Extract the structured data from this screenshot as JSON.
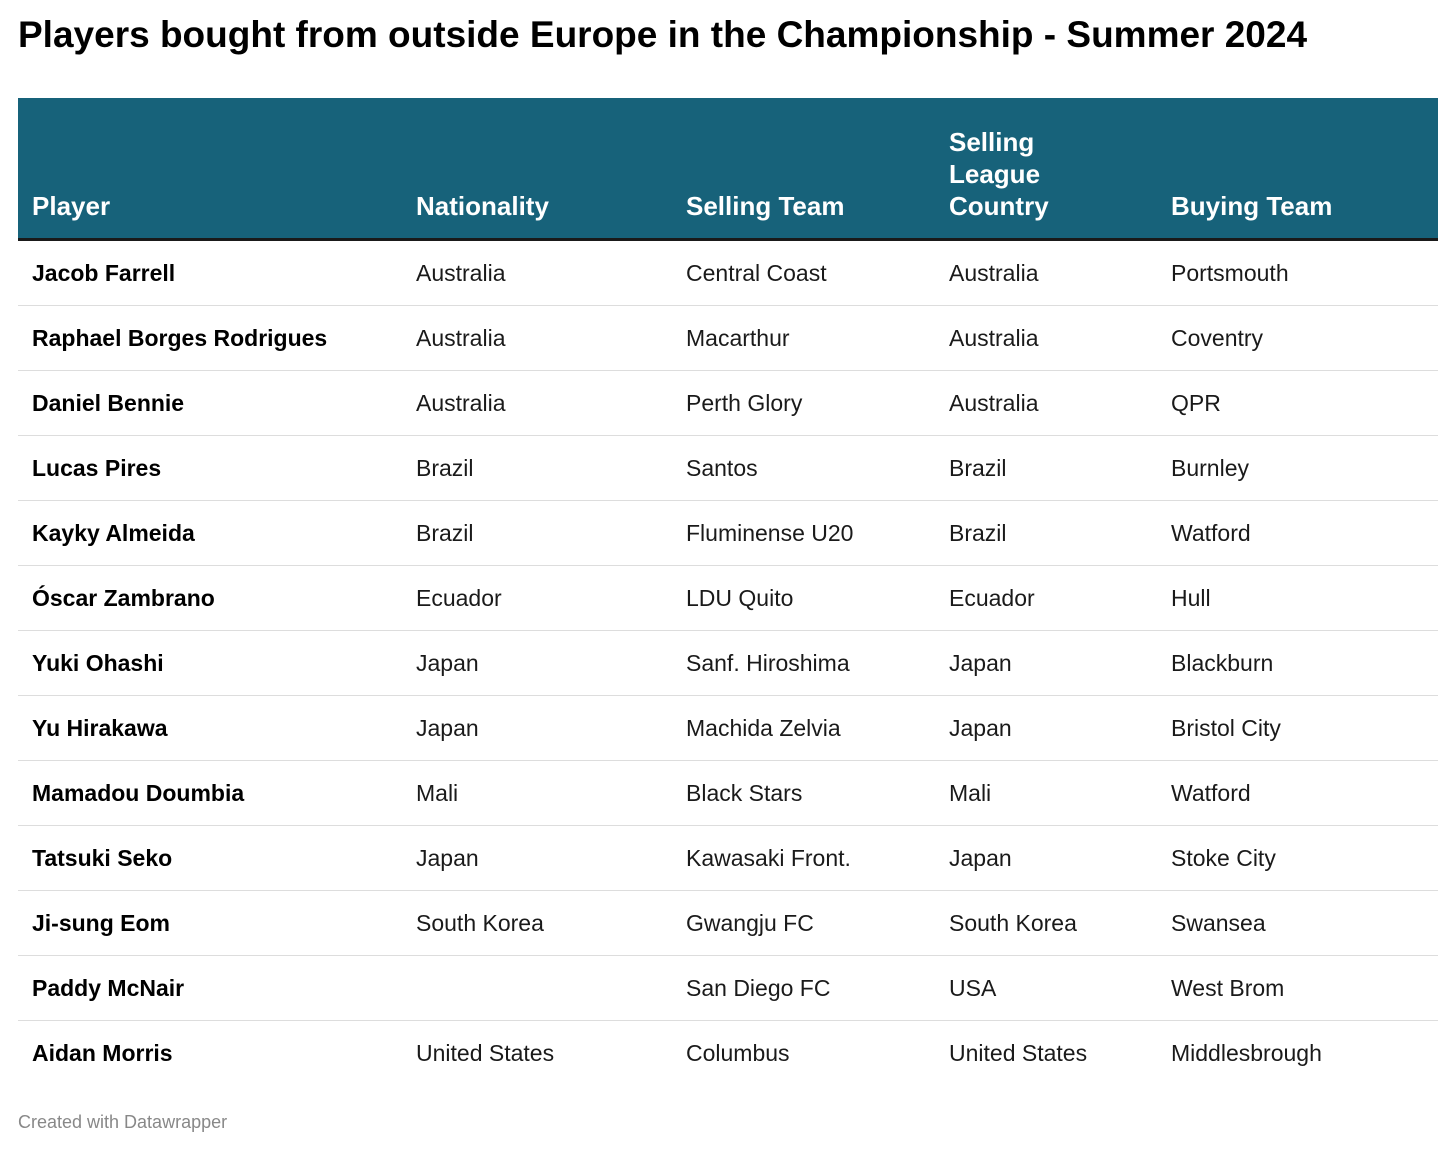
{
  "title": "Players bought from outside Europe in the Championship - Summer 2024",
  "footer": "Created with Datawrapper",
  "colors": {
    "header_bg": "#17627a",
    "header_text": "#ffffff",
    "row_divider": "#dddddd"
  },
  "chart_data": {
    "type": "table",
    "title": "Players bought from outside Europe in the Championship - Summer 2024",
    "columns": [
      "Player",
      "Nationality",
      "Selling Team",
      "Selling\nLeague\nCountry",
      "Buying Team"
    ],
    "rows": [
      [
        "Jacob Farrell",
        "Australia",
        "Central Coast",
        "Australia",
        "Portsmouth"
      ],
      [
        "Raphael Borges Rodrigues",
        "Australia",
        "Macarthur",
        "Australia",
        "Coventry"
      ],
      [
        "Daniel Bennie",
        "Australia",
        "Perth Glory",
        "Australia",
        "QPR"
      ],
      [
        "Lucas Pires",
        "Brazil",
        "Santos",
        "Brazil",
        "Burnley"
      ],
      [
        "Kayky Almeida",
        "Brazil",
        "Fluminense U20",
        "Brazil",
        "Watford"
      ],
      [
        "Óscar Zambrano",
        "Ecuador",
        "LDU Quito",
        "Ecuador",
        "Hull"
      ],
      [
        "Yuki Ohashi",
        "Japan",
        "Sanf. Hiroshima",
        "Japan",
        "Blackburn"
      ],
      [
        "Yu Hirakawa",
        "Japan",
        "Machida Zelvia",
        "Japan",
        "Bristol City"
      ],
      [
        "Mamadou Doumbia",
        "Mali",
        "Black Stars",
        "Mali",
        "Watford"
      ],
      [
        "Tatsuki Seko",
        "Japan",
        "Kawasaki Front.",
        "Japan",
        "Stoke City"
      ],
      [
        "Ji-sung Eom",
        "South Korea",
        "Gwangju FC",
        "South Korea",
        "Swansea"
      ],
      [
        "Paddy McNair",
        "",
        "San Diego FC",
        "USA",
        "West Brom"
      ],
      [
        "Aidan Morris",
        "United States",
        "Columbus",
        "United States",
        "Middlesbrough"
      ]
    ]
  }
}
